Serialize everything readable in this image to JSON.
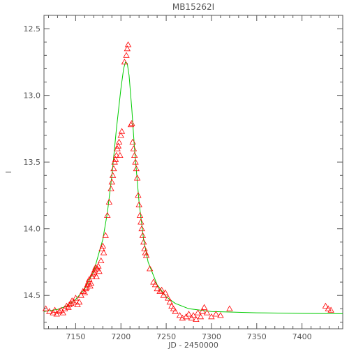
{
  "chart_data": {
    "type": "scatter",
    "title": "MB15262I",
    "xlabel": "JD - 2450000",
    "ylabel": "I",
    "xlim": [
      7115,
      7445
    ],
    "ylim": [
      14.75,
      12.4
    ],
    "y_inverted": true,
    "grid": false,
    "x_ticks": [
      7150,
      7200,
      7250,
      7300,
      7350,
      7400
    ],
    "y_ticks": [
      12.5,
      13.0,
      13.5,
      14.0,
      14.5
    ],
    "x_tick_labels": [
      "7150",
      "7200",
      "7250",
      "7300",
      "7350",
      "7400"
    ],
    "y_tick_labels": [
      "12.5",
      "13.0",
      "13.5",
      "14.0",
      "14.5"
    ],
    "colors": {
      "observations": "#ff0000",
      "fit": "#00cc00",
      "axes": "#555555"
    },
    "series": [
      {
        "role": "observations",
        "marker": "triangle",
        "points": [
          [
            7117,
            14.6
          ],
          [
            7121,
            14.62
          ],
          [
            7125,
            14.63
          ],
          [
            7127,
            14.61
          ],
          [
            7129,
            14.64
          ],
          [
            7132,
            14.62
          ],
          [
            7134,
            14.61
          ],
          [
            7136,
            14.63
          ],
          [
            7138,
            14.6
          ],
          [
            7140,
            14.58
          ],
          [
            7142,
            14.59
          ],
          [
            7143,
            14.57
          ],
          [
            7145,
            14.56
          ],
          [
            7146,
            14.54
          ],
          [
            7148,
            14.55
          ],
          [
            7150,
            14.52
          ],
          [
            7152,
            14.57
          ],
          [
            7154,
            14.55
          ],
          [
            7156,
            14.5
          ],
          [
            7158,
            14.47
          ],
          [
            7160,
            14.48
          ],
          [
            7161,
            14.45
          ],
          [
            7162,
            14.44
          ],
          [
            7163,
            14.42
          ],
          [
            7164,
            14.4
          ],
          [
            7165,
            14.38
          ],
          [
            7166,
            14.43
          ],
          [
            7167,
            14.41
          ],
          [
            7168,
            14.36
          ],
          [
            7169,
            14.34
          ],
          [
            7170,
            14.33
          ],
          [
            7171,
            14.31
          ],
          [
            7172,
            14.29
          ],
          [
            7173,
            14.36
          ],
          [
            7174,
            14.3
          ],
          [
            7175,
            14.28
          ],
          [
            7176,
            14.32
          ],
          [
            7178,
            14.24
          ],
          [
            7179,
            14.15
          ],
          [
            7180,
            14.13
          ],
          [
            7181,
            14.18
          ],
          [
            7183,
            14.05
          ],
          [
            7185,
            13.9
          ],
          [
            7187,
            13.8
          ],
          [
            7189,
            13.7
          ],
          [
            7190,
            13.65
          ],
          [
            7191,
            13.6
          ],
          [
            7192,
            13.55
          ],
          [
            7193,
            13.5
          ],
          [
            7194,
            13.48
          ],
          [
            7195,
            13.45
          ],
          [
            7196,
            13.4
          ],
          [
            7197,
            13.38
          ],
          [
            7198,
            13.35
          ],
          [
            7199,
            13.45
          ],
          [
            7200,
            13.3
          ],
          [
            7201,
            13.27
          ],
          [
            7204,
            12.75
          ],
          [
            7206,
            12.7
          ],
          [
            7207,
            12.65
          ],
          [
            7208,
            12.62
          ],
          [
            7211,
            13.22
          ],
          [
            7212,
            13.21
          ],
          [
            7213,
            13.35
          ],
          [
            7214,
            13.4
          ],
          [
            7215,
            13.45
          ],
          [
            7216,
            13.5
          ],
          [
            7217,
            13.55
          ],
          [
            7218,
            13.62
          ],
          [
            7219,
            13.75
          ],
          [
            7220,
            13.82
          ],
          [
            7221,
            13.9
          ],
          [
            7222,
            13.95
          ],
          [
            7223,
            14.0
          ],
          [
            7224,
            14.05
          ],
          [
            7225,
            14.1
          ],
          [
            7226,
            14.15
          ],
          [
            7227,
            14.18
          ],
          [
            7228,
            14.2
          ],
          [
            7232,
            14.3
          ],
          [
            7236,
            14.4
          ],
          [
            7238,
            14.42
          ],
          [
            7240,
            14.45
          ],
          [
            7243,
            14.47
          ],
          [
            7245,
            14.46
          ],
          [
            7247,
            14.5
          ],
          [
            7249,
            14.48
          ],
          [
            7252,
            14.52
          ],
          [
            7254,
            14.55
          ],
          [
            7256,
            14.58
          ],
          [
            7258,
            14.6
          ],
          [
            7260,
            14.62
          ],
          [
            7265,
            14.65
          ],
          [
            7268,
            14.67
          ],
          [
            7272,
            14.66
          ],
          [
            7275,
            14.64
          ],
          [
            7278,
            14.67
          ],
          [
            7280,
            14.65
          ],
          [
            7283,
            14.68
          ],
          [
            7285,
            14.63
          ],
          [
            7288,
            14.66
          ],
          [
            7290,
            14.62
          ],
          [
            7292,
            14.59
          ],
          [
            7295,
            14.63
          ],
          [
            7300,
            14.66
          ],
          [
            7305,
            14.64
          ],
          [
            7310,
            14.65
          ],
          [
            7320,
            14.6
          ],
          [
            7426,
            14.58
          ],
          [
            7429,
            14.6
          ],
          [
            7432,
            14.61
          ]
        ]
      },
      {
        "role": "fit",
        "marker": "line",
        "points": [
          [
            7115,
            14.62
          ],
          [
            7130,
            14.605
          ],
          [
            7140,
            14.58
          ],
          [
            7150,
            14.53
          ],
          [
            7160,
            14.45
          ],
          [
            7170,
            14.32
          ],
          [
            7180,
            14.08
          ],
          [
            7185,
            13.88
          ],
          [
            7190,
            13.6
          ],
          [
            7195,
            13.25
          ],
          [
            7200,
            12.95
          ],
          [
            7203,
            12.8
          ],
          [
            7205,
            12.75
          ],
          [
            7207,
            12.76
          ],
          [
            7209,
            12.85
          ],
          [
            7212,
            13.1
          ],
          [
            7215,
            13.4
          ],
          [
            7220,
            13.8
          ],
          [
            7225,
            14.08
          ],
          [
            7230,
            14.25
          ],
          [
            7240,
            14.42
          ],
          [
            7250,
            14.51
          ],
          [
            7260,
            14.56
          ],
          [
            7275,
            14.6
          ],
          [
            7300,
            14.62
          ],
          [
            7350,
            14.63
          ],
          [
            7400,
            14.635
          ],
          [
            7445,
            14.637
          ]
        ]
      }
    ]
  }
}
